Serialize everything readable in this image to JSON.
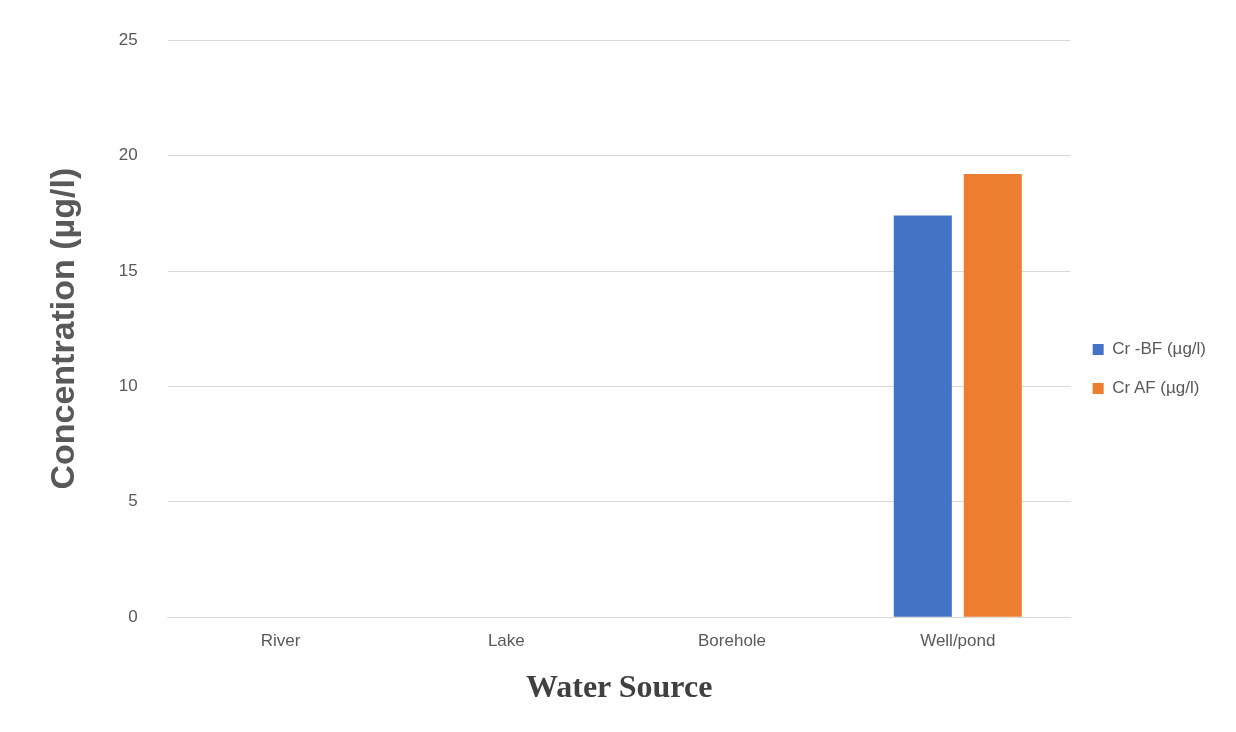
{
  "chart_data": {
    "type": "bar",
    "xlabel": "Water Source",
    "ylabel": "Concentration (µg/l)",
    "categories": [
      "River",
      "Lake",
      "Borehole",
      "Well/pond"
    ],
    "series": [
      {
        "name": "Cr -BF (µg/l)",
        "color": "#4472c4",
        "values": [
          0,
          0,
          0,
          17.4
        ]
      },
      {
        "name": "Cr AF (µg/l)",
        "color": "#ed7d31",
        "values": [
          0,
          0,
          0,
          19.2
        ]
      }
    ],
    "ylim": [
      0,
      25
    ],
    "yticks": [
      0,
      5,
      10,
      15,
      20,
      25
    ],
    "grid": "y",
    "legend": "right"
  }
}
